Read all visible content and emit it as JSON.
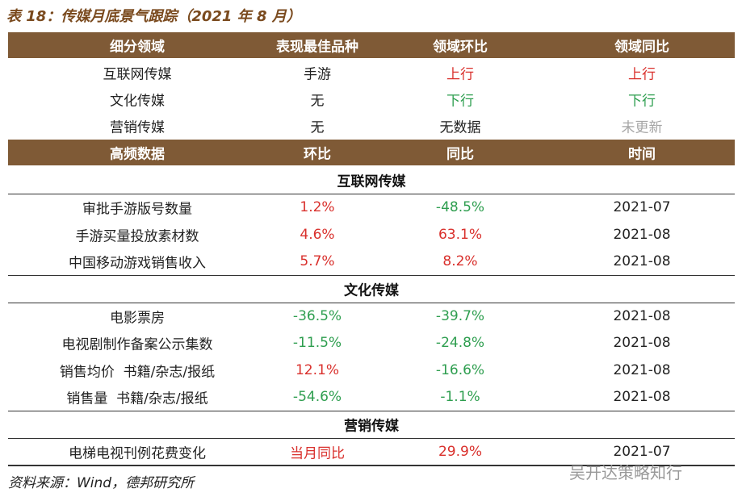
{
  "title": "表 18：传媒月底景气跟踪（2021 年 8 月）",
  "table1": {
    "header": [
      "细分领域",
      "表现最佳品种",
      "领域环比",
      "领域同比"
    ],
    "rows": [
      {
        "cells": [
          "互联网传媒",
          "手游",
          "上行",
          "上行"
        ],
        "colors": [
          "#222222",
          "#222222",
          "#d9302c",
          "#d9302c"
        ]
      },
      {
        "cells": [
          "文化传媒",
          "无",
          "下行",
          "下行"
        ],
        "colors": [
          "#222222",
          "#222222",
          "#2e9e4f",
          "#2e9e4f"
        ]
      },
      {
        "cells": [
          "营销传媒",
          "无",
          "无数据",
          "未更新"
        ],
        "colors": [
          "#222222",
          "#222222",
          "#222222",
          "#a6a6a6"
        ]
      }
    ]
  },
  "table2": {
    "header": [
      "高频数据",
      "环比",
      "同比",
      "时间"
    ],
    "sections": [
      {
        "title": "互联网传媒",
        "rows": [
          {
            "cells": [
              "审批手游版号数量",
              "1.2%",
              "-48.5%",
              "2021-07"
            ],
            "colors": [
              "#222222",
              "#d9302c",
              "#2e9e4f",
              "#222222"
            ]
          },
          {
            "cells": [
              "手游买量投放素材数",
              "4.6%",
              "63.1%",
              "2021-08"
            ],
            "colors": [
              "#222222",
              "#d9302c",
              "#d9302c",
              "#222222"
            ]
          },
          {
            "cells": [
              "中国移动游戏销售收入",
              "5.7%",
              "8.2%",
              "2021-08"
            ],
            "colors": [
              "#222222",
              "#d9302c",
              "#d9302c",
              "#222222"
            ]
          }
        ]
      },
      {
        "title": "文化传媒",
        "rows": [
          {
            "cells": [
              "电影票房",
              "-36.5%",
              "-39.7%",
              "2021-08"
            ],
            "colors": [
              "#222222",
              "#2e9e4f",
              "#2e9e4f",
              "#222222"
            ]
          },
          {
            "cells": [
              "电视剧制作备案公示集数",
              "-11.5%",
              "-24.8%",
              "2021-08"
            ],
            "colors": [
              "#222222",
              "#2e9e4f",
              "#2e9e4f",
              "#222222"
            ]
          },
          {
            "cells": [
              "销售均价  书籍/杂志/报纸",
              "12.1%",
              "-16.6%",
              "2021-08"
            ],
            "colors": [
              "#222222",
              "#d9302c",
              "#2e9e4f",
              "#222222"
            ]
          },
          {
            "cells": [
              "销售量  书籍/杂志/报纸",
              "-54.6%",
              "-1.1%",
              "2021-08"
            ],
            "colors": [
              "#222222",
              "#2e9e4f",
              "#2e9e4f",
              "#222222"
            ]
          }
        ]
      },
      {
        "title": "营销传媒",
        "rows": [
          {
            "cells": [
              "电梯电视刊例花费变化",
              "当月同比",
              "29.9%",
              "2021-07"
            ],
            "colors": [
              "#222222",
              "#d9302c",
              "#d9302c",
              "#222222"
            ]
          }
        ]
      }
    ]
  },
  "source": "资料来源：Wind，德邦研究所",
  "watermark": "吴开达策略知行"
}
